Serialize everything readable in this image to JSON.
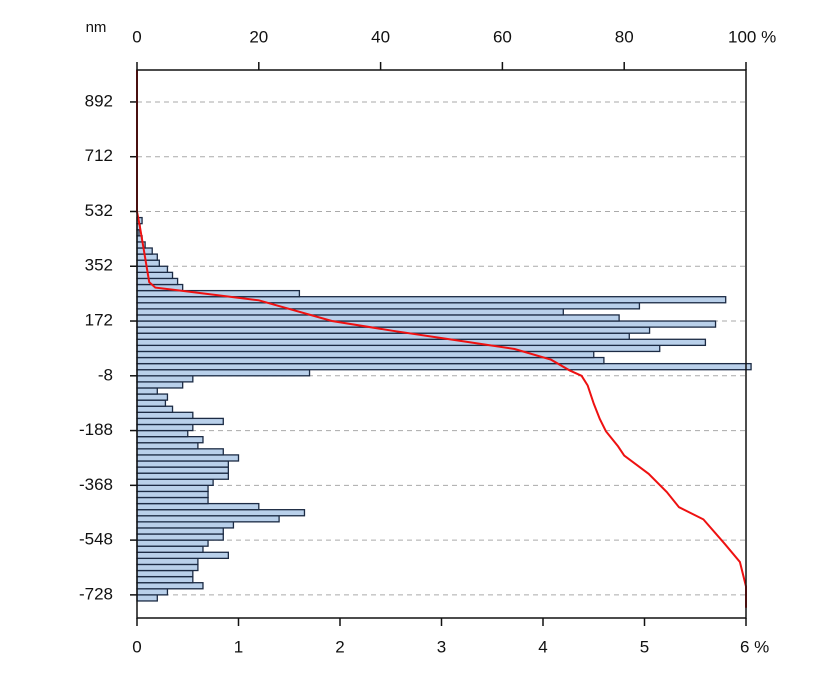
{
  "chart_data": {
    "type": "histogram",
    "orientation": "horizontal",
    "ylabel": "nm",
    "bins": [
      -748,
      -728,
      -708,
      -688,
      -668,
      -648,
      -628,
      -608,
      -588,
      -568,
      -548,
      -528,
      -508,
      -488,
      -468,
      -448,
      -428,
      -408,
      -388,
      -368,
      -348,
      -328,
      -308,
      -288,
      -268,
      -248,
      -228,
      -208,
      -188,
      -168,
      -148,
      -128,
      -108,
      -88,
      -68,
      -48,
      -28,
      -8,
      12,
      32,
      52,
      72,
      92,
      112,
      132,
      152,
      172,
      192,
      212,
      232,
      252,
      272,
      292,
      312,
      332,
      352,
      372,
      392,
      412,
      432,
      452,
      472,
      492,
      512
    ],
    "values": [
      0.2,
      0.3,
      0.65,
      0.55,
      0.55,
      0.6,
      0.6,
      0.9,
      0.65,
      0.7,
      0.85,
      0.85,
      0.95,
      1.4,
      1.65,
      1.2,
      0.7,
      0.7,
      0.7,
      0.75,
      0.9,
      0.9,
      0.9,
      1.0,
      0.85,
      0.6,
      0.65,
      0.5,
      0.55,
      0.85,
      0.55,
      0.35,
      0.28,
      0.3,
      0.2,
      0.45,
      0.55,
      1.7,
      6.05,
      4.6,
      4.5,
      5.15,
      5.6,
      4.85,
      5.05,
      5.7,
      4.75,
      4.2,
      4.95,
      5.8,
      1.6,
      0.45,
      0.4,
      0.35,
      0.3,
      0.22,
      0.2,
      0.15,
      0.08,
      0.05,
      0.02,
      0.03,
      0.05
    ],
    "color": "#b9d0ea",
    "edgecolor": "#1c2b44",
    "cumulative": {
      "color": "#ee1111",
      "x": [
        0,
        0,
        0.5,
        1,
        2,
        3,
        8,
        20,
        32,
        42,
        52,
        62,
        68,
        71,
        73,
        74,
        75,
        76,
        77,
        79,
        80,
        84,
        87,
        89,
        93,
        96.5,
        99,
        100,
        100
      ],
      "y": [
        997,
        532,
        480,
        420,
        300,
        282,
        270,
        240,
        172,
        140,
        110,
        80,
        45,
        10,
        -8,
        -40,
        -100,
        -150,
        -190,
        -240,
        -270,
        -330,
        -390,
        -440,
        -480,
        -560,
        -620,
        -700,
        -770
      ]
    },
    "xlim": [
      0,
      6
    ],
    "xticks": [
      0,
      1,
      2,
      3,
      4,
      5,
      {
        "value": 6,
        "label": "6 %"
      }
    ],
    "x2lim": [
      0,
      100
    ],
    "x2ticks": [
      0,
      20,
      40,
      60,
      80,
      {
        "value": 100,
        "label": "100 %"
      }
    ],
    "ylim": [
      -804,
      997
    ],
    "yticks": [
      -728,
      -548,
      -368,
      -188,
      -8,
      172,
      352,
      532,
      712,
      892
    ],
    "grid": true
  }
}
